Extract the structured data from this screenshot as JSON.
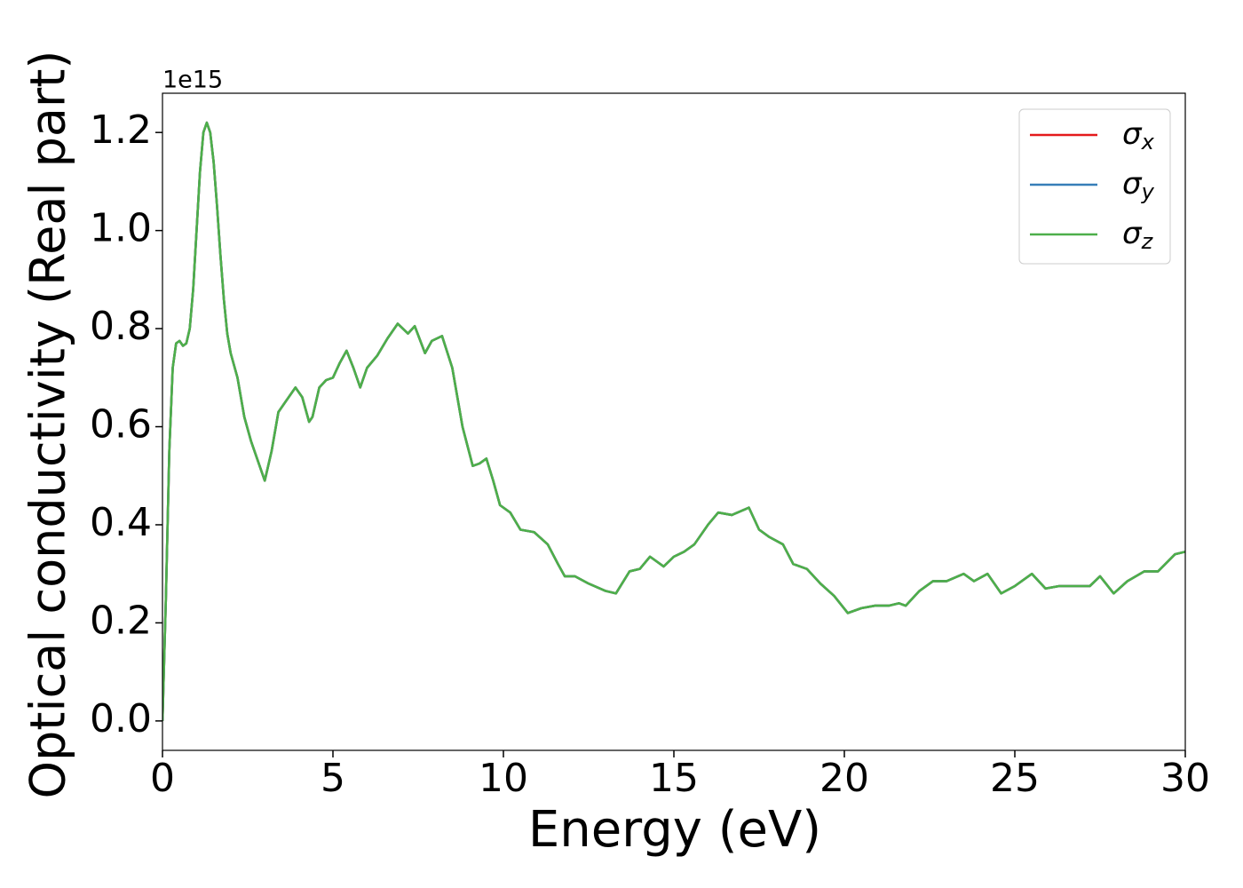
{
  "chart_data": {
    "type": "line",
    "x_label": "Energy (eV)",
    "y_label": "Optical conductivity (Real part)",
    "y_offset": "1e15",
    "x": [
      0,
      0.1,
      0.2,
      0.3,
      0.4,
      0.5,
      0.6,
      0.7,
      0.8,
      0.9,
      1.0,
      1.1,
      1.2,
      1.3,
      1.4,
      1.5,
      1.6,
      1.7,
      1.8,
      1.9,
      2.0,
      2.2,
      2.4,
      2.6,
      2.8,
      3.0,
      3.2,
      3.4,
      3.6,
      3.8,
      3.9,
      4.1,
      4.3,
      4.4,
      4.6,
      4.8,
      5.0,
      5.2,
      5.4,
      5.6,
      5.8,
      6.0,
      6.3,
      6.6,
      6.9,
      7.2,
      7.4,
      7.7,
      7.9,
      8.2,
      8.5,
      8.8,
      9.1,
      9.3,
      9.5,
      9.7,
      9.9,
      10.2,
      10.5,
      10.9,
      11.3,
      11.6,
      11.8,
      12.1,
      12.5,
      13.0,
      13.3,
      13.7,
      14.0,
      14.3,
      14.7,
      15.0,
      15.3,
      15.6,
      16.0,
      16.3,
      16.7,
      17.2,
      17.5,
      17.8,
      18.2,
      18.5,
      18.9,
      19.3,
      19.7,
      20.1,
      20.5,
      20.9,
      21.3,
      21.6,
      21.8,
      22.2,
      22.6,
      23.0,
      23.5,
      23.8,
      24.2,
      24.6,
      25.0,
      25.5,
      25.9,
      26.3,
      26.8,
      27.2,
      27.5,
      27.9,
      28.3,
      28.8,
      29.2,
      29.7,
      30.0
    ],
    "series": [
      {
        "name": "σx",
        "color": "#e41a1c",
        "values": [
          0,
          0.25,
          0.55,
          0.72,
          0.77,
          0.775,
          0.765,
          0.77,
          0.8,
          0.88,
          1.0,
          1.12,
          1.2,
          1.22,
          1.2,
          1.14,
          1.05,
          0.95,
          0.86,
          0.79,
          0.75,
          0.7,
          0.62,
          0.57,
          0.53,
          0.49,
          0.55,
          0.63,
          0.65,
          0.67,
          0.68,
          0.66,
          0.61,
          0.62,
          0.68,
          0.695,
          0.7,
          0.73,
          0.755,
          0.72,
          0.68,
          0.72,
          0.745,
          0.78,
          0.81,
          0.79,
          0.805,
          0.75,
          0.775,
          0.785,
          0.72,
          0.6,
          0.52,
          0.525,
          0.535,
          0.49,
          0.44,
          0.425,
          0.39,
          0.385,
          0.36,
          0.32,
          0.295,
          0.295,
          0.28,
          0.265,
          0.26,
          0.305,
          0.31,
          0.335,
          0.315,
          0.335,
          0.345,
          0.36,
          0.4,
          0.425,
          0.42,
          0.435,
          0.39,
          0.375,
          0.36,
          0.32,
          0.31,
          0.28,
          0.255,
          0.22,
          0.23,
          0.235,
          0.235,
          0.24,
          0.235,
          0.265,
          0.285,
          0.285,
          0.3,
          0.285,
          0.3,
          0.26,
          0.275,
          0.3,
          0.27,
          0.275,
          0.275,
          0.275,
          0.295,
          0.26,
          0.285,
          0.305,
          0.305,
          0.34,
          0.345
        ]
      },
      {
        "name": "σy",
        "color": "#377eb8",
        "values": [
          0,
          0.25,
          0.55,
          0.72,
          0.77,
          0.775,
          0.765,
          0.77,
          0.8,
          0.88,
          1.0,
          1.12,
          1.2,
          1.22,
          1.2,
          1.14,
          1.05,
          0.95,
          0.86,
          0.79,
          0.75,
          0.7,
          0.62,
          0.57,
          0.53,
          0.49,
          0.55,
          0.63,
          0.65,
          0.67,
          0.68,
          0.66,
          0.61,
          0.62,
          0.68,
          0.695,
          0.7,
          0.73,
          0.755,
          0.72,
          0.68,
          0.72,
          0.745,
          0.78,
          0.81,
          0.79,
          0.805,
          0.75,
          0.775,
          0.785,
          0.72,
          0.6,
          0.52,
          0.525,
          0.535,
          0.49,
          0.44,
          0.425,
          0.39,
          0.385,
          0.36,
          0.32,
          0.295,
          0.295,
          0.28,
          0.265,
          0.26,
          0.305,
          0.31,
          0.335,
          0.315,
          0.335,
          0.345,
          0.36,
          0.4,
          0.425,
          0.42,
          0.435,
          0.39,
          0.375,
          0.36,
          0.32,
          0.31,
          0.28,
          0.255,
          0.22,
          0.23,
          0.235,
          0.235,
          0.24,
          0.235,
          0.265,
          0.285,
          0.285,
          0.3,
          0.285,
          0.3,
          0.26,
          0.275,
          0.3,
          0.27,
          0.275,
          0.275,
          0.275,
          0.295,
          0.26,
          0.285,
          0.305,
          0.305,
          0.34,
          0.345
        ]
      },
      {
        "name": "σz",
        "color": "#4daf4a",
        "values": [
          0,
          0.25,
          0.55,
          0.72,
          0.77,
          0.775,
          0.765,
          0.77,
          0.8,
          0.88,
          1.0,
          1.12,
          1.2,
          1.22,
          1.2,
          1.14,
          1.05,
          0.95,
          0.86,
          0.79,
          0.75,
          0.7,
          0.62,
          0.57,
          0.53,
          0.49,
          0.55,
          0.63,
          0.65,
          0.67,
          0.68,
          0.66,
          0.61,
          0.62,
          0.68,
          0.695,
          0.7,
          0.73,
          0.755,
          0.72,
          0.68,
          0.72,
          0.745,
          0.78,
          0.81,
          0.79,
          0.805,
          0.75,
          0.775,
          0.785,
          0.72,
          0.6,
          0.52,
          0.525,
          0.535,
          0.49,
          0.44,
          0.425,
          0.39,
          0.385,
          0.36,
          0.32,
          0.295,
          0.295,
          0.28,
          0.265,
          0.26,
          0.305,
          0.31,
          0.335,
          0.315,
          0.335,
          0.345,
          0.36,
          0.4,
          0.425,
          0.42,
          0.435,
          0.39,
          0.375,
          0.36,
          0.32,
          0.31,
          0.28,
          0.255,
          0.22,
          0.23,
          0.235,
          0.235,
          0.24,
          0.235,
          0.265,
          0.285,
          0.285,
          0.3,
          0.285,
          0.3,
          0.26,
          0.275,
          0.3,
          0.27,
          0.275,
          0.275,
          0.275,
          0.295,
          0.26,
          0.285,
          0.305,
          0.305,
          0.34,
          0.345
        ]
      }
    ],
    "xlim": [
      0,
      30
    ],
    "xticks": [
      0,
      5,
      10,
      15,
      20,
      25,
      30
    ],
    "ylim": [
      -0.06,
      1.28
    ],
    "yticks": [
      {
        "value": 0,
        "label": "0.0"
      },
      0.2,
      0.4,
      0.6,
      0.8,
      {
        "value": 1.0,
        "label": "1.0"
      },
      1.2
    ],
    "legend": "upper right",
    "grid": false
  }
}
